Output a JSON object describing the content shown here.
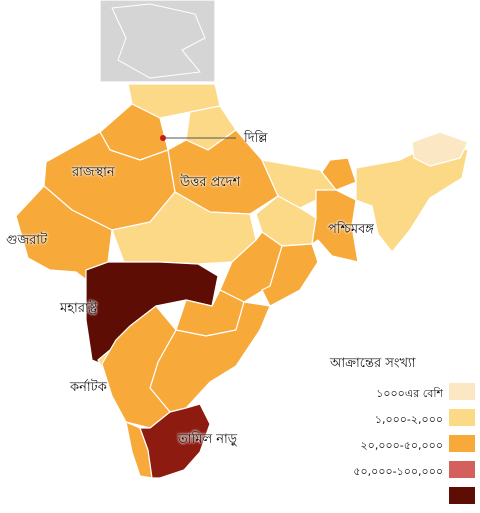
{
  "colors": {
    "disputed": "#d5d5d5",
    "level_1": "#fbe7c4",
    "level_2": "#fcd986",
    "level_3": "#f7a93a",
    "level_4": "#d4605d",
    "level_5": "#5e0d05",
    "tamil_nadu": "#8e1b10",
    "marker": "#c21a1a"
  },
  "labels": {
    "delhi": "দিল্লি",
    "rajasthan": "রাজস্থান",
    "uttar_pradesh": "উত্তর প্রদেশ",
    "gujarat": "গুজরাট",
    "west_bengal": "পশ্চিমবঙ্গ",
    "maharashtra": "মহারাষ্ট্র",
    "karnataka": "কর্নাটক",
    "tamil_nadu": "তামিল নাড়ু"
  },
  "legend": {
    "title": "আক্রান্তের সংখ্যা",
    "items": [
      {
        "label": "১০০০এর বেশি",
        "color": "#fbe7c4"
      },
      {
        "label": "১,০০০-২,০০০",
        "color": "#fcd986"
      },
      {
        "label": "২০,০০০-৫০,০০০",
        "color": "#f7a93a"
      },
      {
        "label": "৫০,০০০-১০০,০০০",
        "color": "#d4605d"
      },
      {
        "label": "",
        "color": "#5e0d05"
      }
    ]
  }
}
